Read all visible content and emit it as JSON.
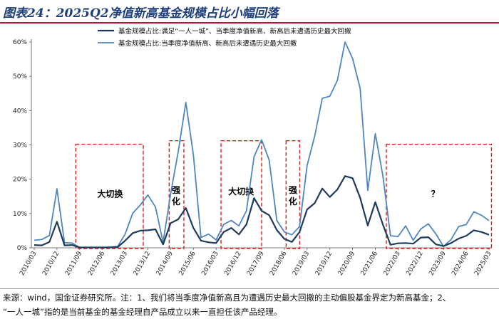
{
  "header": {
    "title": "图表24：2025Q2净值新高基金规模占比小幅回落"
  },
  "footer": {
    "source_line1": "来源：wind，国金证券研究所。注：1、我们将当季度净值新高且为遭遇历史最大回撤的主动偏股基金界定为新高基金；2、",
    "source_line2": "“一人一城”指的是当前基金的基金经理自产品成立以来一直担任该产品经理。"
  },
  "colors": {
    "series_dark": "#1f3b5c",
    "series_light": "#4f86c0",
    "annotation_box": "#e0191b",
    "title": "#1f3f7a",
    "accent_rule": "#c8102e"
  },
  "chart_data": {
    "type": "line",
    "title": "",
    "xlabel": "",
    "ylabel": "",
    "ylim": [
      0,
      60
    ],
    "y_ticks": [
      "0%",
      "10%",
      "20%",
      "30%",
      "40%",
      "50%",
      "60%"
    ],
    "x_tick_labels": [
      "2010/03",
      "2010/12",
      "2011/09",
      "2012/06",
      "2013/03",
      "2013/12",
      "2014/09",
      "2015/06",
      "2016/03",
      "2016/12",
      "2017/09",
      "2018/06",
      "2019/03",
      "2019/12",
      "2020/09",
      "2021/06",
      "2022/03",
      "2022/12",
      "2023/09",
      "2024/06",
      "2025/03"
    ],
    "legend_position": "top",
    "grid": false,
    "series": [
      {
        "name": "基金规模占比:满足“一人一城”、当季度净值新高、新高后未遭遇历史最大回撤",
        "values": [
          0.8,
          0.7,
          1.7,
          7.6,
          0.7,
          0.8,
          0.1,
          0.1,
          0.1,
          0.1,
          0.1,
          0.2,
          2.1,
          4.3,
          5.0,
          5.1,
          5.4,
          1.0,
          7.2,
          8.3,
          11.6,
          5.8,
          2.1,
          1.6,
          1.4,
          4.6,
          5.8,
          3.9,
          6.8,
          14.5,
          10.8,
          9.5,
          5.2,
          2.6,
          1.7,
          4.6,
          11.2,
          13.0,
          17.3,
          14.8,
          17.0,
          20.9,
          20.3,
          14.6,
          6.5,
          13.3,
          6.8,
          0.9,
          1.3,
          1.4,
          1.2,
          3.0,
          3.1,
          1.0,
          0.5,
          1.4,
          2.7,
          3.5,
          5.1,
          4.6,
          3.8
        ]
      },
      {
        "name": "基金规模占比:当季度净值新高、新高后未遭遇历史最大回撤",
        "values": [
          2.2,
          2.4,
          3.6,
          17.2,
          1.5,
          1.4,
          0.1,
          0.1,
          0.1,
          0.1,
          0.2,
          0.4,
          4.0,
          10.1,
          12.5,
          15.4,
          11.9,
          1.6,
          15.8,
          28.0,
          42.4,
          27.1,
          3.0,
          4.0,
          2.3,
          6.8,
          8.0,
          6.4,
          10.8,
          26.6,
          31.5,
          25.6,
          8.0,
          4.6,
          3.8,
          6.2,
          24.0,
          32.5,
          43.6,
          44.2,
          48.8,
          60.0,
          55.2,
          46.5,
          16.7,
          33.3,
          21.0,
          3.5,
          3.3,
          6.4,
          2.2,
          5.5,
          7.0,
          4.0,
          0.4,
          2.4,
          6.2,
          6.8,
          10.5,
          9.5,
          7.9
        ]
      }
    ],
    "annotations": [
      {
        "label": "大切换"
      },
      {
        "label": "强化"
      },
      {
        "label": "大切换"
      },
      {
        "label": "强化"
      },
      {
        "label": "？"
      }
    ]
  }
}
